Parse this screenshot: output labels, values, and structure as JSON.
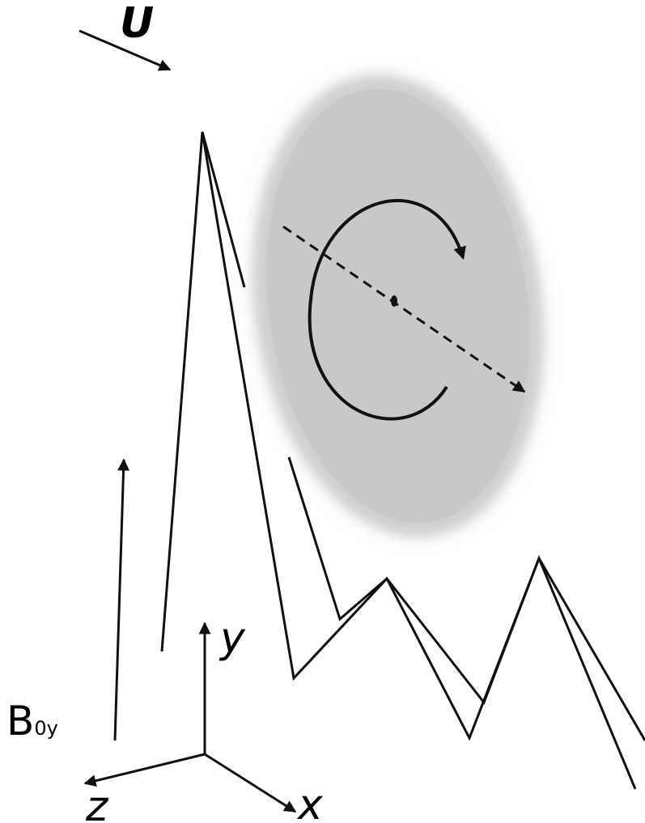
{
  "labels": {
    "velocity": "U",
    "field": "B",
    "field_subscript": "0y",
    "axis_y": "y",
    "axis_z": "z",
    "axis_x": "x"
  }
}
